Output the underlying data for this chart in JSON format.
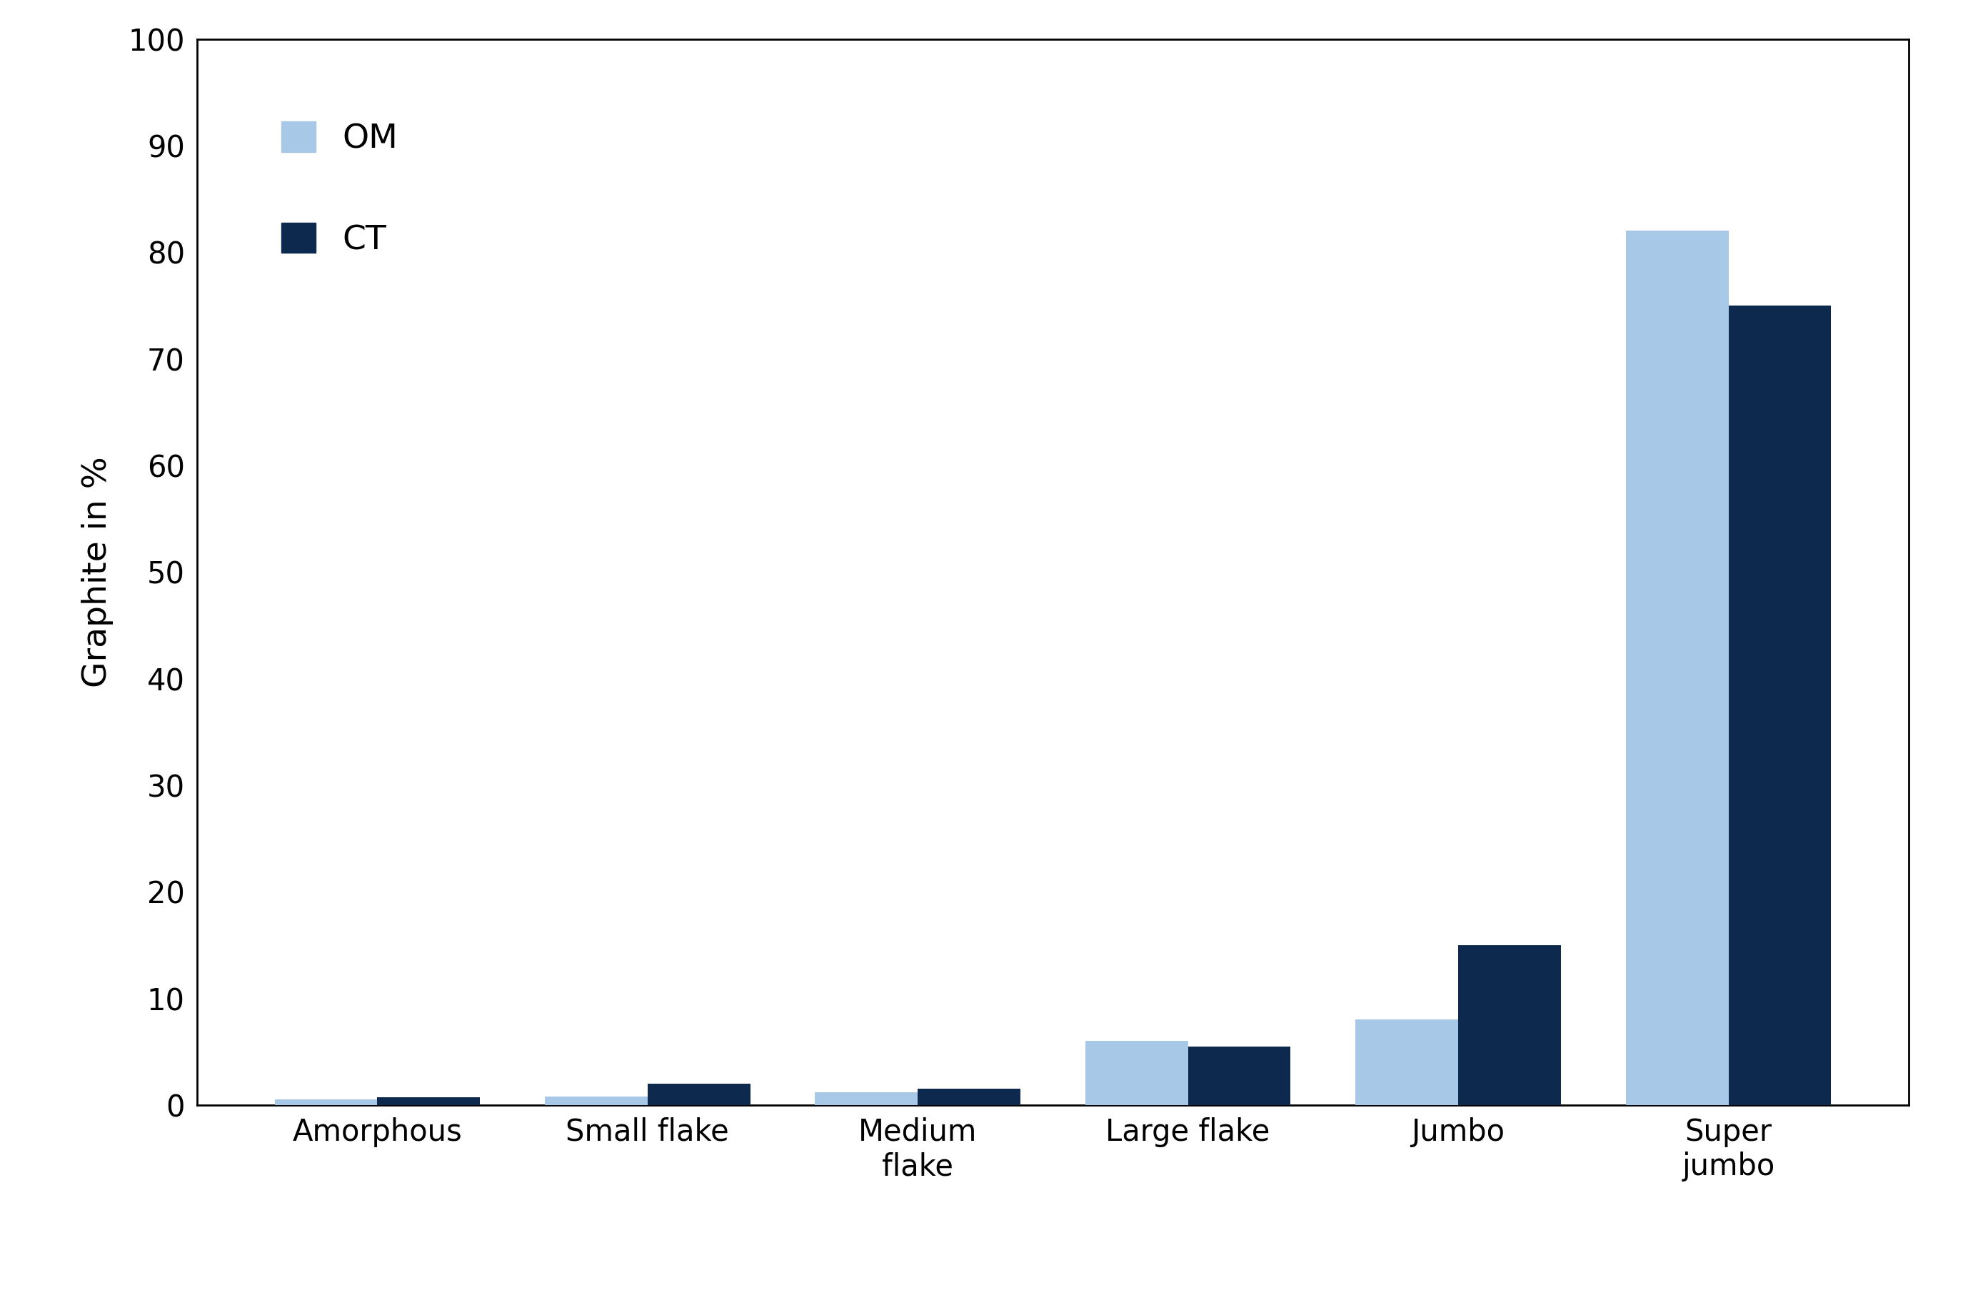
{
  "categories": [
    "Amorphous",
    "Small flake",
    "Medium\nflake",
    "Large flake",
    "Jumbo",
    "Super\njumbo"
  ],
  "om_values": [
    0.5,
    0.8,
    1.2,
    6.0,
    8.0,
    82.0
  ],
  "ct_values": [
    0.7,
    2.0,
    1.5,
    5.5,
    15.0,
    75.0
  ],
  "om_color": "#a8c8e8",
  "ct_color": "#0d2a4e",
  "ylabel": "Graphite in %",
  "ylim": [
    0,
    100
  ],
  "yticks": [
    0,
    10,
    20,
    30,
    40,
    50,
    60,
    70,
    80,
    90,
    100
  ],
  "legend_labels": [
    "OM",
    "CT"
  ],
  "background_color": "#ffffff",
  "plot_bg_color": "#ffffff",
  "bar_width": 0.38,
  "axis_label_fontsize": 34,
  "tick_fontsize": 30,
  "legend_fontsize": 34,
  "spine_color": "#000000",
  "spine_linewidth": 2.0
}
